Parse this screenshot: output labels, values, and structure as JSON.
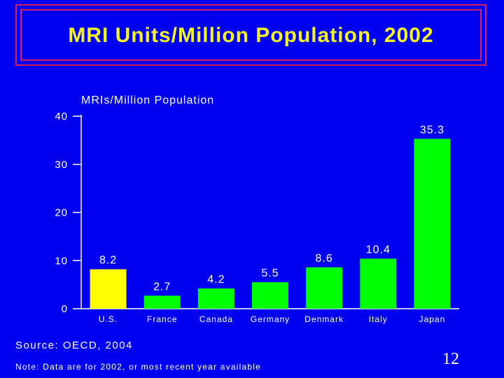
{
  "slide": {
    "title": "MRI Units/Million Population, 2002",
    "source": "Source: OECD, 2004",
    "note": "Note: Data are for 2002, or most recent year available",
    "page_number": "12"
  },
  "chart_data": {
    "type": "bar",
    "title": "MRIs/Million Population",
    "categories": [
      "U.S.",
      "France",
      "Canada",
      "Germany",
      "Denmark",
      "Italy",
      "Japan"
    ],
    "values": [
      8.2,
      2.7,
      4.2,
      5.5,
      8.6,
      10.4,
      35.3
    ],
    "value_labels": [
      "8.2",
      "2.7",
      "4.2",
      "5.5",
      "8.6",
      "10.4",
      "35.3"
    ],
    "yticks": [
      0,
      10,
      20,
      30,
      40
    ],
    "ylim": [
      0,
      40
    ],
    "grid": false,
    "colors": {
      "highlight": "#ffff00",
      "bar": "#00ff00",
      "axis": "#ffffff",
      "background": "#0000f0"
    },
    "highlight_index": 0
  }
}
